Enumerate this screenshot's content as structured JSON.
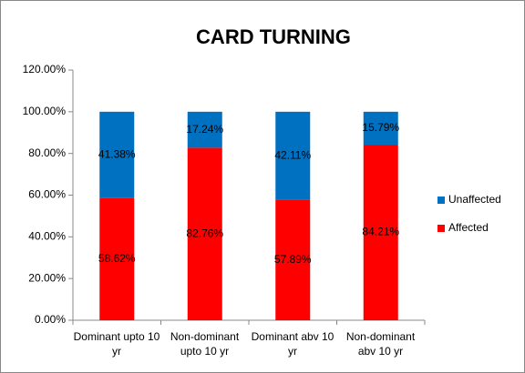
{
  "chart_data": {
    "type": "stacked_bar",
    "title": "CARD TURNING",
    "categories": [
      "Dominant upto 10 yr",
      "Non-dominant upto 10 yr",
      "Dominant abv 10 yr",
      "Non-dominant abv 10 yr"
    ],
    "series": [
      {
        "name": "Affected",
        "color": "#ff0000",
        "values": [
          58.62,
          82.76,
          57.89,
          84.21
        ],
        "value_labels": [
          "58.62%",
          "82.76%",
          "57.89%",
          "84.21%"
        ]
      },
      {
        "name": "Unaffected",
        "color": "#0070c0",
        "values": [
          41.38,
          17.24,
          42.11,
          15.79
        ],
        "value_labels": [
          "41.38%",
          "17.24%",
          "42.11%",
          "15.79%"
        ]
      }
    ],
    "ylim": [
      0,
      120
    ],
    "yticks": [
      {
        "value": 0,
        "label": "0.00%"
      },
      {
        "value": 20,
        "label": "20.00%"
      },
      {
        "value": 40,
        "label": "40.00%"
      },
      {
        "value": 60,
        "label": "60.00%"
      },
      {
        "value": 80,
        "label": "80.00%"
      },
      {
        "value": 100,
        "label": "100.00%"
      },
      {
        "value": 120,
        "label": "120.00%"
      }
    ],
    "legend": "right",
    "grid": false
  }
}
